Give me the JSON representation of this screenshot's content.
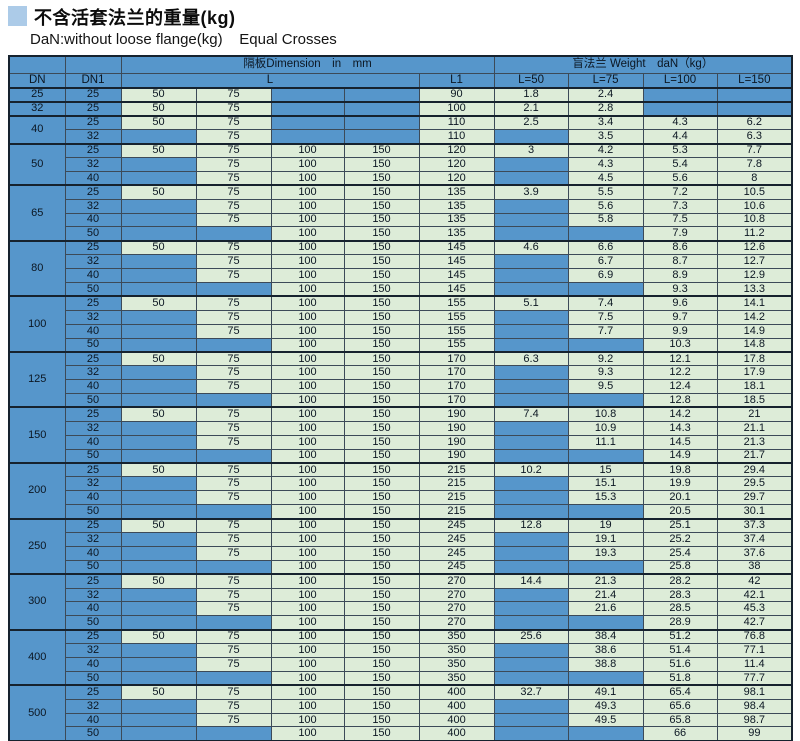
{
  "title": "不含活套法兰的重量(kg)",
  "subtitle": "DaN:without loose flange(kg)    Equal Crosses",
  "colors": {
    "cell_blue": "#5696cb",
    "cell_green": "#ddecd8",
    "bullet_blue": "#accbe8",
    "border_dark": "#16222e"
  },
  "table": {
    "header": {
      "dimension_group": "隔板Dimension　in　mm",
      "weight_group": "盲法兰 Weight　daN（kg）",
      "dn": "DN",
      "dn1": "DN1",
      "l": "L",
      "l1": "L1",
      "weight_cols": [
        "L=50",
        "L=75",
        "L=100",
        "L=150"
      ]
    },
    "groups": [
      {
        "dn": "25",
        "rows": [
          {
            "dn1": "25",
            "l": [
              "50",
              "75",
              "",
              ""
            ],
            "l1": "90",
            "w": [
              "1.8",
              "2.4",
              "",
              ""
            ]
          }
        ]
      },
      {
        "dn": "32",
        "rows": [
          {
            "dn1": "25",
            "l": [
              "50",
              "75",
              "",
              ""
            ],
            "l1": "100",
            "w": [
              "2.1",
              "2.8",
              "",
              ""
            ]
          }
        ]
      },
      {
        "dn": "40",
        "rows": [
          {
            "dn1": "25",
            "l": [
              "50",
              "75",
              "",
              ""
            ],
            "l1": "110",
            "w": [
              "2.5",
              "3.4",
              "4.3",
              "6.2"
            ]
          },
          {
            "dn1": "32",
            "l": [
              "",
              "75",
              "",
              ""
            ],
            "l1": "110",
            "w": [
              "",
              "3.5",
              "4.4",
              "6.3"
            ]
          }
        ]
      },
      {
        "dn": "50",
        "rows": [
          {
            "dn1": "25",
            "l": [
              "50",
              "75",
              "100",
              "150"
            ],
            "l1": "120",
            "w": [
              "3",
              "4.2",
              "5.3",
              "7.7"
            ]
          },
          {
            "dn1": "32",
            "l": [
              "",
              "75",
              "100",
              "150"
            ],
            "l1": "120",
            "w": [
              "",
              "4.3",
              "5.4",
              "7.8"
            ]
          },
          {
            "dn1": "40",
            "l": [
              "",
              "75",
              "100",
              "150"
            ],
            "l1": "120",
            "w": [
              "",
              "4.5",
              "5.6",
              "8"
            ]
          }
        ]
      },
      {
        "dn": "65",
        "rows": [
          {
            "dn1": "25",
            "l": [
              "50",
              "75",
              "100",
              "150"
            ],
            "l1": "135",
            "w": [
              "3.9",
              "5.5",
              "7.2",
              "10.5"
            ]
          },
          {
            "dn1": "32",
            "l": [
              "",
              "75",
              "100",
              "150"
            ],
            "l1": "135",
            "w": [
              "",
              "5.6",
              "7.3",
              "10.6"
            ]
          },
          {
            "dn1": "40",
            "l": [
              "",
              "75",
              "100",
              "150"
            ],
            "l1": "135",
            "w": [
              "",
              "5.8",
              "7.5",
              "10.8"
            ]
          },
          {
            "dn1": "50",
            "l": [
              "",
              "",
              "100",
              "150"
            ],
            "l1": "135",
            "w": [
              "",
              "",
              "7.9",
              "11.2"
            ]
          }
        ]
      },
      {
        "dn": "80",
        "rows": [
          {
            "dn1": "25",
            "l": [
              "50",
              "75",
              "100",
              "150"
            ],
            "l1": "145",
            "w": [
              "4.6",
              "6.6",
              "8.6",
              "12.6"
            ]
          },
          {
            "dn1": "32",
            "l": [
              "",
              "75",
              "100",
              "150"
            ],
            "l1": "145",
            "w": [
              "",
              "6.7",
              "8.7",
              "12.7"
            ]
          },
          {
            "dn1": "40",
            "l": [
              "",
              "75",
              "100",
              "150"
            ],
            "l1": "145",
            "w": [
              "",
              "6.9",
              "8.9",
              "12.9"
            ]
          },
          {
            "dn1": "50",
            "l": [
              "",
              "",
              "100",
              "150"
            ],
            "l1": "145",
            "w": [
              "",
              "",
              "9.3",
              "13.3"
            ]
          }
        ]
      },
      {
        "dn": "100",
        "rows": [
          {
            "dn1": "25",
            "l": [
              "50",
              "75",
              "100",
              "150"
            ],
            "l1": "155",
            "w": [
              "5.1",
              "7.4",
              "9.6",
              "14.1"
            ]
          },
          {
            "dn1": "32",
            "l": [
              "",
              "75",
              "100",
              "150"
            ],
            "l1": "155",
            "w": [
              "",
              "7.5",
              "9.7",
              "14.2"
            ]
          },
          {
            "dn1": "40",
            "l": [
              "",
              "75",
              "100",
              "150"
            ],
            "l1": "155",
            "w": [
              "",
              "7.7",
              "9.9",
              "14.9"
            ]
          },
          {
            "dn1": "50",
            "l": [
              "",
              "",
              "100",
              "150"
            ],
            "l1": "155",
            "w": [
              "",
              "",
              "10.3",
              "14.8"
            ]
          }
        ]
      },
      {
        "dn": "125",
        "rows": [
          {
            "dn1": "25",
            "l": [
              "50",
              "75",
              "100",
              "150"
            ],
            "l1": "170",
            "w": [
              "6.3",
              "9.2",
              "12.1",
              "17.8"
            ]
          },
          {
            "dn1": "32",
            "l": [
              "",
              "75",
              "100",
              "150"
            ],
            "l1": "170",
            "w": [
              "",
              "9.3",
              "12.2",
              "17.9"
            ]
          },
          {
            "dn1": "40",
            "l": [
              "",
              "75",
              "100",
              "150"
            ],
            "l1": "170",
            "w": [
              "",
              "9.5",
              "12.4",
              "18.1"
            ]
          },
          {
            "dn1": "50",
            "l": [
              "",
              "",
              "100",
              "150"
            ],
            "l1": "170",
            "w": [
              "",
              "",
              "12.8",
              "18.5"
            ]
          }
        ]
      },
      {
        "dn": "150",
        "rows": [
          {
            "dn1": "25",
            "l": [
              "50",
              "75",
              "100",
              "150"
            ],
            "l1": "190",
            "w": [
              "7.4",
              "10.8",
              "14.2",
              "21"
            ]
          },
          {
            "dn1": "32",
            "l": [
              "",
              "75",
              "100",
              "150"
            ],
            "l1": "190",
            "w": [
              "",
              "10.9",
              "14.3",
              "21.1"
            ]
          },
          {
            "dn1": "40",
            "l": [
              "",
              "75",
              "100",
              "150"
            ],
            "l1": "190",
            "w": [
              "",
              "11.1",
              "14.5",
              "21.3"
            ]
          },
          {
            "dn1": "50",
            "l": [
              "",
              "",
              "100",
              "150"
            ],
            "l1": "190",
            "w": [
              "",
              "",
              "14.9",
              "21.7"
            ]
          }
        ]
      },
      {
        "dn": "200",
        "rows": [
          {
            "dn1": "25",
            "l": [
              "50",
              "75",
              "100",
              "150"
            ],
            "l1": "215",
            "w": [
              "10.2",
              "15",
              "19.8",
              "29.4"
            ]
          },
          {
            "dn1": "32",
            "l": [
              "",
              "75",
              "100",
              "150"
            ],
            "l1": "215",
            "w": [
              "",
              "15.1",
              "19.9",
              "29.5"
            ]
          },
          {
            "dn1": "40",
            "l": [
              "",
              "75",
              "100",
              "150"
            ],
            "l1": "215",
            "w": [
              "",
              "15.3",
              "20.1",
              "29.7"
            ]
          },
          {
            "dn1": "50",
            "l": [
              "",
              "",
              "100",
              "150"
            ],
            "l1": "215",
            "w": [
              "",
              "",
              "20.5",
              "30.1"
            ]
          }
        ]
      },
      {
        "dn": "250",
        "rows": [
          {
            "dn1": "25",
            "l": [
              "50",
              "75",
              "100",
              "150"
            ],
            "l1": "245",
            "w": [
              "12.8",
              "19",
              "25.1",
              "37.3"
            ]
          },
          {
            "dn1": "32",
            "l": [
              "",
              "75",
              "100",
              "150"
            ],
            "l1": "245",
            "w": [
              "",
              "19.1",
              "25.2",
              "37.4"
            ]
          },
          {
            "dn1": "40",
            "l": [
              "",
              "75",
              "100",
              "150"
            ],
            "l1": "245",
            "w": [
              "",
              "19.3",
              "25.4",
              "37.6"
            ]
          },
          {
            "dn1": "50",
            "l": [
              "",
              "",
              "100",
              "150"
            ],
            "l1": "245",
            "w": [
              "",
              "",
              "25.8",
              "38"
            ]
          }
        ]
      },
      {
        "dn": "300",
        "rows": [
          {
            "dn1": "25",
            "l": [
              "50",
              "75",
              "100",
              "150"
            ],
            "l1": "270",
            "w": [
              "14.4",
              "21.3",
              "28.2",
              "42"
            ]
          },
          {
            "dn1": "32",
            "l": [
              "",
              "75",
              "100",
              "150"
            ],
            "l1": "270",
            "w": [
              "",
              "21.4",
              "28.3",
              "42.1"
            ]
          },
          {
            "dn1": "40",
            "l": [
              "",
              "75",
              "100",
              "150"
            ],
            "l1": "270",
            "w": [
              "",
              "21.6",
              "28.5",
              "45.3"
            ]
          },
          {
            "dn1": "50",
            "l": [
              "",
              "",
              "100",
              "150"
            ],
            "l1": "270",
            "w": [
              "",
              "",
              "28.9",
              "42.7"
            ]
          }
        ]
      },
      {
        "dn": "400",
        "rows": [
          {
            "dn1": "25",
            "l": [
              "50",
              "75",
              "100",
              "150"
            ],
            "l1": "350",
            "w": [
              "25.6",
              "38.4",
              "51.2",
              "76.8"
            ]
          },
          {
            "dn1": "32",
            "l": [
              "",
              "75",
              "100",
              "150"
            ],
            "l1": "350",
            "w": [
              "",
              "38.6",
              "51.4",
              "77.1"
            ]
          },
          {
            "dn1": "40",
            "l": [
              "",
              "75",
              "100",
              "150"
            ],
            "l1": "350",
            "w": [
              "",
              "38.8",
              "51.6",
              "11.4"
            ]
          },
          {
            "dn1": "50",
            "l": [
              "",
              "",
              "100",
              "150"
            ],
            "l1": "350",
            "w": [
              "",
              "",
              "51.8",
              "77.7"
            ]
          }
        ]
      },
      {
        "dn": "500",
        "rows": [
          {
            "dn1": "25",
            "l": [
              "50",
              "75",
              "100",
              "150"
            ],
            "l1": "400",
            "w": [
              "32.7",
              "49.1",
              "65.4",
              "98.1"
            ]
          },
          {
            "dn1": "32",
            "l": [
              "",
              "75",
              "100",
              "150"
            ],
            "l1": "400",
            "w": [
              "",
              "49.3",
              "65.6",
              "98.4"
            ]
          },
          {
            "dn1": "40",
            "l": [
              "",
              "75",
              "100",
              "150"
            ],
            "l1": "400",
            "w": [
              "",
              "49.5",
              "65.8",
              "98.7"
            ]
          },
          {
            "dn1": "50",
            "l": [
              "",
              "",
              "100",
              "150"
            ],
            "l1": "400",
            "w": [
              "",
              "",
              "66",
              "99"
            ]
          }
        ]
      }
    ]
  }
}
